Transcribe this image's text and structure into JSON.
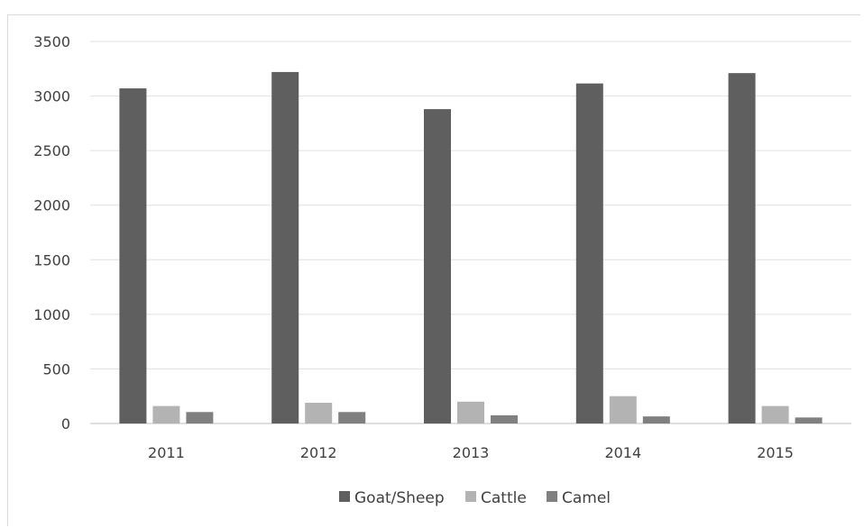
{
  "chart_data": {
    "type": "bar",
    "categories": [
      "2011",
      "2012",
      "2013",
      "2014",
      "2015"
    ],
    "series": [
      {
        "name": "Goat/Sheep",
        "values": [
          3070,
          3220,
          2880,
          3115,
          3210
        ],
        "color": "#5f5f5f"
      },
      {
        "name": "Cattle",
        "values": [
          160,
          190,
          200,
          250,
          160
        ],
        "color": "#b3b3b3"
      },
      {
        "name": "Camel",
        "values": [
          105,
          105,
          75,
          65,
          55
        ],
        "color": "#808080"
      }
    ],
    "ylim": [
      0,
      3500
    ],
    "yticks": [
      0,
      500,
      1000,
      1500,
      2000,
      2500,
      3000,
      3500
    ],
    "grid": true,
    "legend_position": "bottom"
  }
}
